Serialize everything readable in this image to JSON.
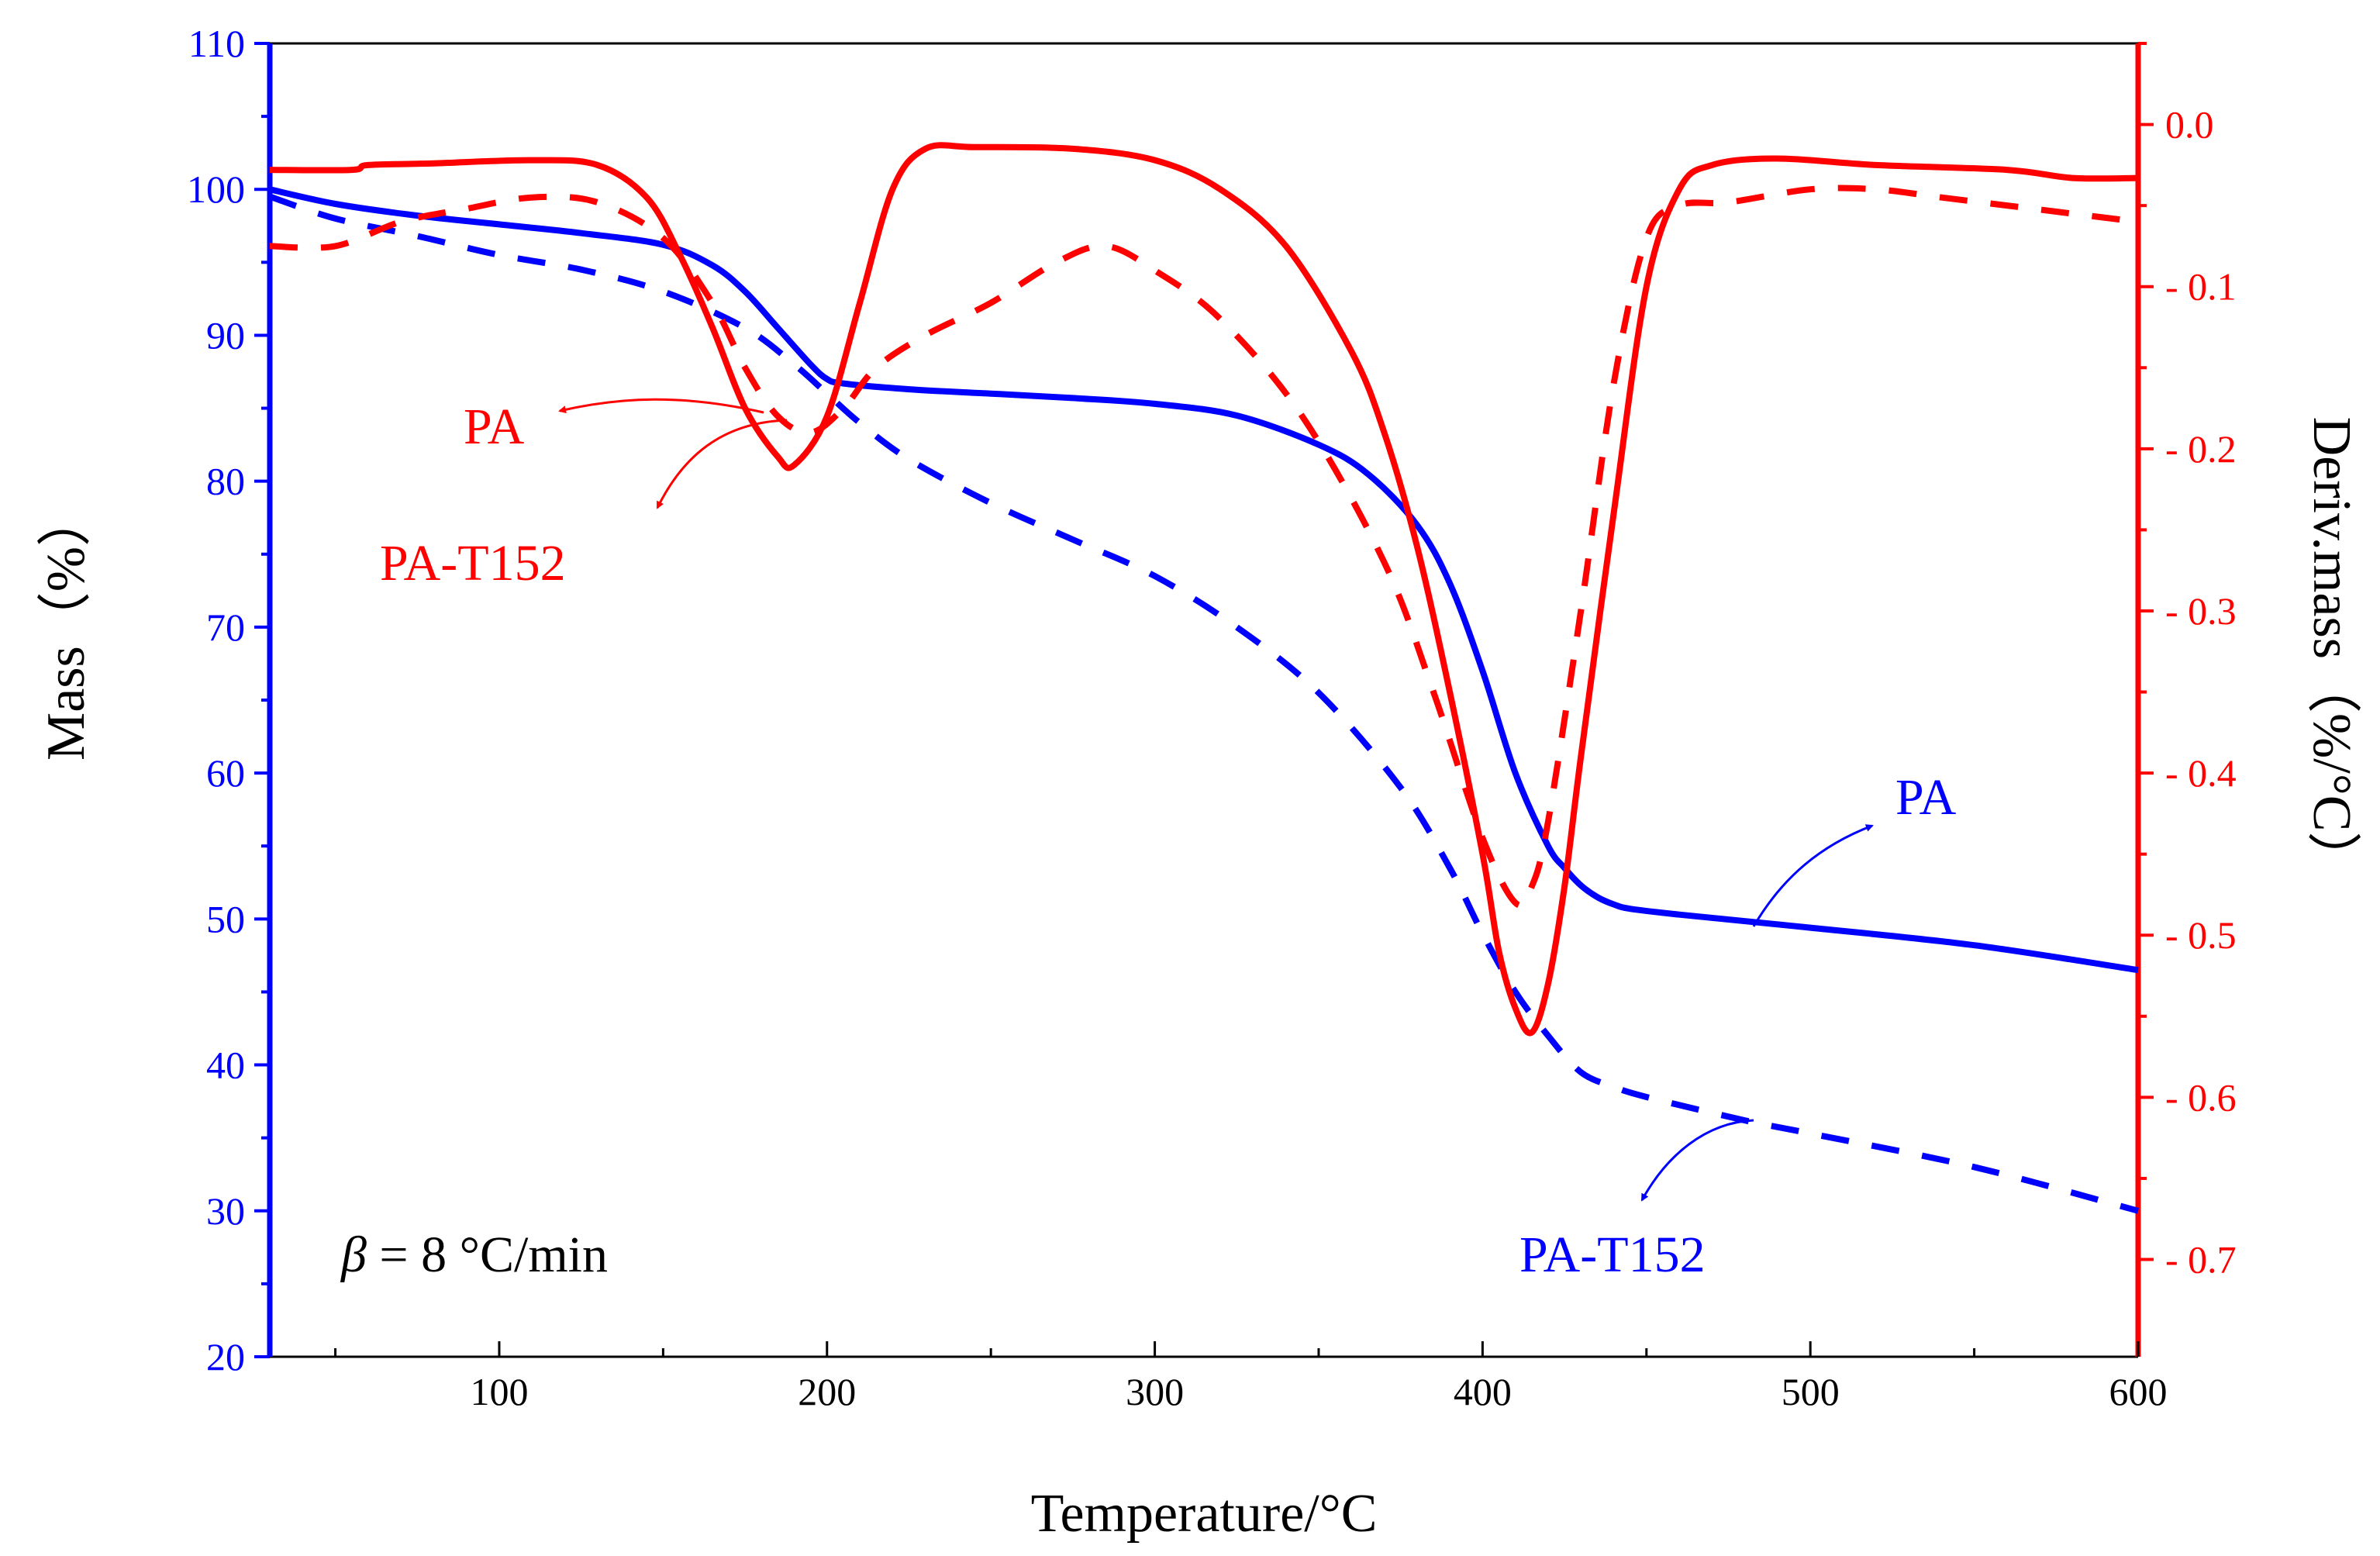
{
  "chart_data": {
    "type": "line",
    "title": "",
    "xlabel": "Temperature/°C",
    "ylabel_left": "Mass（%）",
    "ylabel_right": "Deriv.mass（%/°C）",
    "xlim": [
      30,
      600
    ],
    "ylim_left": [
      20,
      110
    ],
    "ylim_right": [
      -0.76,
      0.05
    ],
    "x_ticks": [
      100,
      200,
      300,
      400,
      500,
      600
    ],
    "y_left_ticks": [
      20,
      30,
      40,
      50,
      60,
      70,
      80,
      90,
      100,
      110
    ],
    "y_right_ticks": [
      0.0,
      -0.1,
      -0.2,
      -0.3,
      -0.4,
      -0.5,
      -0.6,
      -0.7
    ],
    "y_right_tick_labels": [
      "0.0",
      "- 0.1",
      "- 0.2",
      "- 0.3",
      "- 0.4",
      "- 0.5",
      "- 0.6",
      "- 0.7"
    ],
    "colors": {
      "mass": "#0000ff",
      "deriv": "#ff0000",
      "axis_left": "#0000ff",
      "axis_right": "#ff0000"
    },
    "series": [
      {
        "name": "PA",
        "quantity": "Mass",
        "axis": "left",
        "style": "solid",
        "color": "#0000ff",
        "x": [
          30,
          50,
          75,
          100,
          125,
          150,
          165,
          175,
          185,
          195,
          200,
          205,
          225,
          250,
          275,
          300,
          325,
          350,
          365,
          380,
          390,
          400,
          410,
          420,
          425,
          430,
          435,
          440,
          445,
          460,
          500,
          550,
          600
        ],
        "y": [
          100.0,
          99.0,
          98.2,
          97.6,
          97.0,
          96.2,
          94.8,
          93.0,
          90.5,
          88.0,
          87.0,
          86.7,
          86.3,
          86.0,
          85.7,
          85.3,
          84.5,
          82.5,
          80.5,
          77.0,
          73.0,
          67.0,
          60.0,
          55.0,
          53.5,
          52.3,
          51.5,
          51.0,
          50.7,
          50.3,
          49.4,
          48.2,
          46.5
        ]
      },
      {
        "name": "PA-T152",
        "quantity": "Mass",
        "axis": "left",
        "style": "dashed",
        "color": "#0000ff",
        "x": [
          30,
          50,
          75,
          100,
          125,
          150,
          175,
          190,
          200,
          210,
          225,
          250,
          275,
          300,
          325,
          350,
          375,
          390,
          400,
          410,
          420,
          430,
          440,
          450,
          480,
          500,
          550,
          600
        ],
        "y": [
          99.5,
          98.0,
          96.8,
          95.5,
          94.5,
          93.0,
          90.5,
          88.0,
          86.0,
          84.0,
          81.5,
          78.5,
          76.0,
          73.5,
          70.0,
          65.5,
          59.0,
          53.5,
          49.0,
          45.0,
          42.0,
          39.5,
          38.5,
          37.8,
          36.2,
          35.3,
          33.0,
          30.0
        ]
      },
      {
        "name": "PA",
        "quantity": "Deriv.mass",
        "axis": "right",
        "style": "solid",
        "color": "#ff0000",
        "x": [
          30,
          55,
          60,
          80,
          110,
          130,
          145,
          155,
          165,
          175,
          185,
          190,
          200,
          210,
          220,
          230,
          245,
          275,
          300,
          320,
          340,
          360,
          370,
          380,
          390,
          400,
          405,
          410,
          415,
          420,
          425,
          430,
          440,
          450,
          460,
          470,
          490,
          520,
          560,
          580,
          600
        ],
        "y": [
          -0.028,
          -0.028,
          -0.025,
          -0.024,
          -0.022,
          -0.025,
          -0.045,
          -0.08,
          -0.125,
          -0.175,
          -0.205,
          -0.21,
          -0.18,
          -0.11,
          -0.04,
          -0.015,
          -0.014,
          -0.015,
          -0.022,
          -0.04,
          -0.075,
          -0.14,
          -0.19,
          -0.26,
          -0.35,
          -0.45,
          -0.51,
          -0.545,
          -0.56,
          -0.53,
          -0.47,
          -0.39,
          -0.24,
          -0.1,
          -0.04,
          -0.025,
          -0.021,
          -0.025,
          -0.028,
          -0.033,
          -0.033
        ]
      },
      {
        "name": "PA-T152",
        "quantity": "Deriv.mass",
        "axis": "right",
        "style": "dashed",
        "color": "#ff0000",
        "x": [
          30,
          50,
          70,
          90,
          110,
          130,
          150,
          165,
          175,
          185,
          195,
          205,
          215,
          230,
          250,
          270,
          285,
          300,
          320,
          345,
          370,
          385,
          400,
          410,
          415,
          420,
          430,
          440,
          450,
          460,
          475,
          500,
          520,
          540,
          560,
          580,
          600
        ],
        "y": [
          -0.075,
          -0.075,
          -0.06,
          -0.052,
          -0.045,
          -0.048,
          -0.07,
          -0.11,
          -0.15,
          -0.18,
          -0.19,
          -0.175,
          -0.15,
          -0.13,
          -0.11,
          -0.085,
          -0.075,
          -0.09,
          -0.12,
          -0.18,
          -0.27,
          -0.35,
          -0.44,
          -0.48,
          -0.47,
          -0.43,
          -0.3,
          -0.16,
          -0.07,
          -0.05,
          -0.048,
          -0.04,
          -0.04,
          -0.045,
          -0.05,
          -0.055,
          -0.06
        ]
      }
    ],
    "annotations": [
      {
        "text": "PA",
        "color": "#ff0000",
        "points_to": "Deriv.mass PA (solid red)"
      },
      {
        "text": "PA-T152",
        "color": "#ff0000",
        "points_to": "Deriv.mass PA-T152 (dashed red)"
      },
      {
        "text": "PA",
        "color": "#0000ff",
        "points_to": "Mass PA (solid blue)"
      },
      {
        "text": "PA-T152",
        "color": "#0000ff",
        "points_to": "Mass PA-T152 (dashed blue)"
      }
    ],
    "note": {
      "symbol": "β",
      "text": " = 8 °C/min"
    }
  }
}
